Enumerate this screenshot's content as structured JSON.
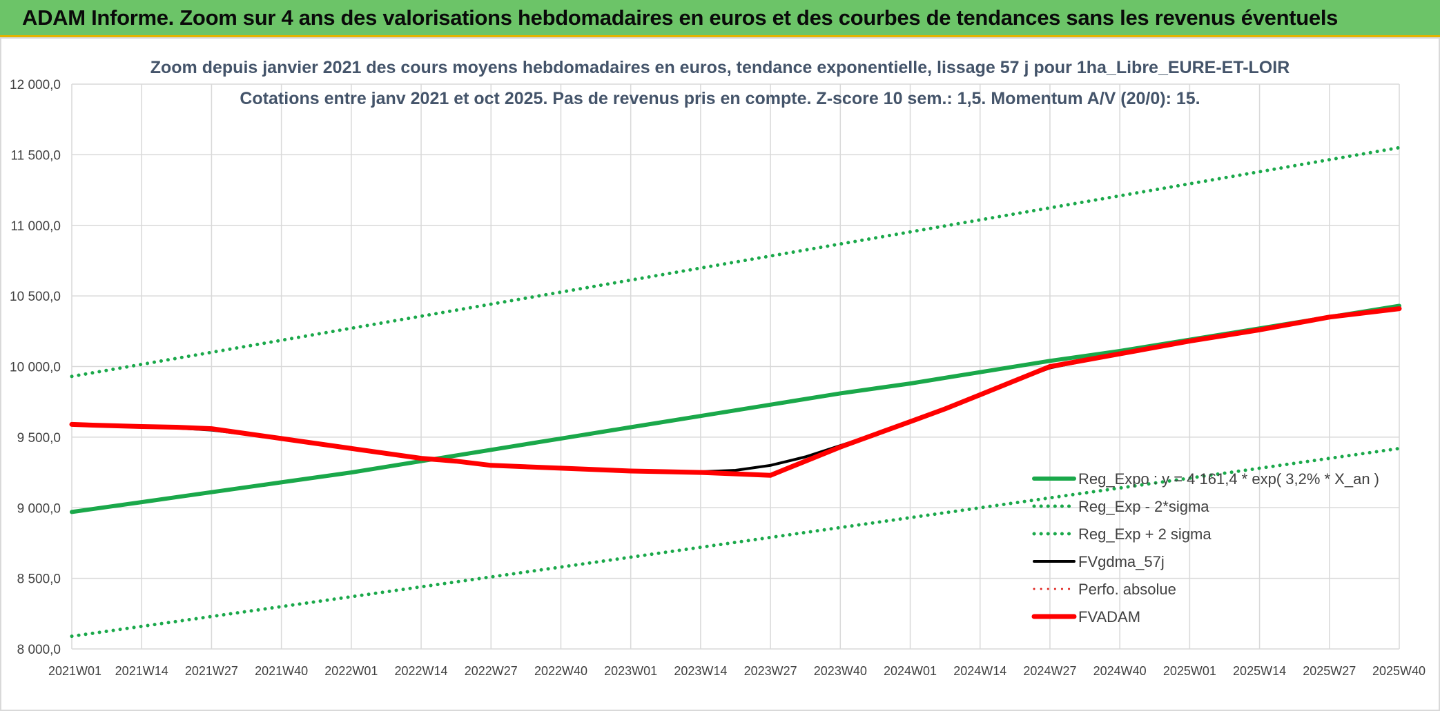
{
  "banner": {
    "title": "ADAM Informe. Zoom sur 4 ans des valorisations hebdomadaires en euros et des courbes de tendances sans les revenus éventuels"
  },
  "chart_data": {
    "type": "line",
    "title": "Zoom depuis janvier 2021 des cours moyens hebdomadaires en euros, tendance exponentielle, lissage 57 j pour 1ha_Libre_EURE-ET-LOIR",
    "subtitle": "Cotations entre janv 2021 et oct 2025. Pas de revenus pris en compte. Z-score 10 sem.: 1,5. Momentum A/V (20/0): 15.",
    "xlabel": "",
    "ylabel": "",
    "ylim": [
      8000,
      12000
    ],
    "yticks": [
      8000,
      8500,
      9000,
      9500,
      10000,
      10500,
      11000,
      11500,
      12000
    ],
    "ytick_labels": [
      "8 000,0",
      "8 500,0",
      "9 000,0",
      "9 500,0",
      "10 000,0",
      "10 500,0",
      "11 000,0",
      "11 500,0",
      "12 000,0"
    ],
    "categories": [
      "2021W01",
      "2021W14",
      "2021W27",
      "2021W40",
      "2022W01",
      "2022W14",
      "2022W27",
      "2022W40",
      "2023W01",
      "2023W14",
      "2023W27",
      "2023W40",
      "2024W01",
      "2024W14",
      "2024W27",
      "2024W40",
      "2025W01",
      "2025W14",
      "2025W27",
      "2025W40"
    ],
    "grid": true,
    "legend_position": "bottom-right",
    "series": [
      {
        "name": "Reg_Expo : y = 4 161,4 * exp( 3,2% * X_an )",
        "color": "#1aa84a",
        "style": "solid",
        "width": 6,
        "x": [
          0,
          1,
          2,
          3,
          4,
          5,
          6,
          7,
          8,
          9,
          10,
          11,
          12,
          13,
          14,
          15,
          16,
          17,
          18,
          19
        ],
        "values": [
          8970,
          9040,
          9110,
          9180,
          9250,
          9330,
          9410,
          9490,
          9570,
          9650,
          9730,
          9810,
          9880,
          9960,
          10040,
          10110,
          10190,
          10270,
          10350,
          10430
        ]
      },
      {
        "name": "Reg_Exp - 2*sigma",
        "color": "#1aa84a",
        "style": "dotted",
        "width": 5,
        "x": [
          0,
          19
        ],
        "values": [
          8090,
          9420
        ]
      },
      {
        "name": "Reg_Exp + 2 sigma",
        "color": "#1aa84a",
        "style": "dotted",
        "width": 5,
        "x": [
          0,
          19
        ],
        "values": [
          9930,
          11550
        ]
      },
      {
        "name": "FVgdma_57j",
        "color": "#000000",
        "style": "solid",
        "width": 4,
        "x": [
          0,
          1,
          2,
          3,
          4,
          5,
          6,
          7,
          8,
          8.5,
          9,
          9.5,
          10,
          10.5,
          11,
          11.5,
          12,
          12.5,
          13,
          13.5,
          14,
          15,
          16,
          17,
          18,
          19
        ],
        "values": [
          9590,
          9580,
          9550,
          9490,
          9420,
          9350,
          9300,
          9280,
          9260,
          9255,
          9255,
          9265,
          9300,
          9360,
          9440,
          9520,
          9610,
          9700,
          9800,
          9900,
          9990,
          10090,
          10180,
          10260,
          10350,
          10410
        ]
      },
      {
        "name": "Perfo. absolue",
        "color": "#e0201b",
        "style": "dotted",
        "width": 3,
        "x": [],
        "values": []
      },
      {
        "name": "FVADAM",
        "color": "#ff0000",
        "style": "solid",
        "width": 7,
        "x": [
          0,
          0.3,
          1,
          1.5,
          2,
          3,
          4,
          5,
          5.5,
          6,
          7,
          8,
          8.5,
          9,
          9.5,
          10,
          10.5,
          11,
          11.5,
          12,
          12.5,
          13,
          13.5,
          14,
          15,
          16,
          17,
          18,
          19
        ],
        "values": [
          9590,
          9585,
          9575,
          9570,
          9560,
          9490,
          9420,
          9350,
          9330,
          9300,
          9280,
          9260,
          9255,
          9250,
          9240,
          9230,
          9330,
          9430,
          9520,
          9610,
          9700,
          9800,
          9900,
          10000,
          10090,
          10180,
          10260,
          10350,
          10410
        ]
      }
    ]
  }
}
